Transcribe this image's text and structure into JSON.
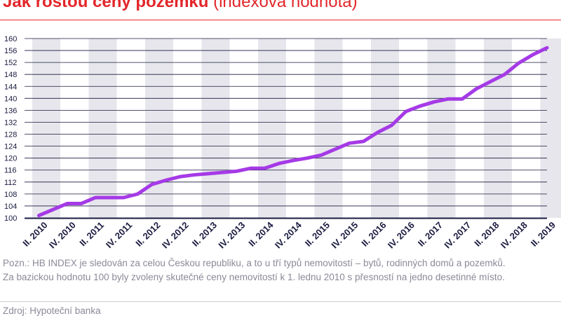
{
  "header": {
    "title": "Jak rostou ceny pozemků",
    "subtitle": "(indexová hodnota)"
  },
  "chart_data": {
    "type": "line",
    "title": "Jak rostou ceny pozemků (indexová hodnota)",
    "ylim": [
      100,
      160
    ],
    "yticks": [
      100,
      104,
      108,
      112,
      116,
      120,
      124,
      128,
      132,
      136,
      140,
      144,
      148,
      152,
      156,
      160
    ],
    "grid": true,
    "x": [
      "II. 2010",
      "III. 2010",
      "IV. 2010",
      "I. 2011",
      "II. 2011",
      "III. 2011",
      "IV. 2011",
      "I. 2012",
      "II. 2012",
      "III. 2012",
      "IV. 2012",
      "I. 2013",
      "II. 2013",
      "III. 2013",
      "IV. 2013",
      "I. 2014",
      "II. 2014",
      "III. 2014",
      "IV. 2014",
      "I. 2015",
      "II. 2015",
      "III. 2015",
      "IV. 2015",
      "I. 2016",
      "II. 2016",
      "III. 2016",
      "IV. 2016",
      "I. 2017",
      "II. 2017",
      "III. 2017",
      "IV. 2017",
      "I. 2018",
      "II. 2018",
      "III. 2018",
      "IV. 2018",
      "I. 2019",
      "II. 2019"
    ],
    "x_tick_labels": [
      "II. 2010",
      "IV. 2010",
      "II. 2011",
      "IV. 2011",
      "II. 2012",
      "IV. 2012",
      "II. 2013",
      "IV. 2013",
      "II. 2014",
      "IV. 2014",
      "II. 2015",
      "IV. 2015",
      "II. 2016",
      "IV. 2016",
      "II. 2017",
      "IV. 2017",
      "II. 2018",
      "IV. 2018",
      "II. 2019"
    ],
    "series": [
      {
        "values": [
          100.8,
          102.8,
          104.8,
          104.8,
          106.8,
          106.8,
          106.8,
          108,
          111.2,
          112.6,
          113.8,
          114.4,
          114.8,
          115.2,
          115.6,
          116.6,
          116.6,
          118.2,
          119.2,
          120,
          121,
          123,
          125,
          125.6,
          128.6,
          131,
          135.6,
          137.4,
          138.8,
          139.8,
          139.8,
          143.2,
          145.6,
          148,
          151.8,
          154.6,
          156.9
        ]
      }
    ],
    "colors": {
      "line": "#a53ae6",
      "title": "#e3262a",
      "axis": "#1a1a40",
      "band": "#e6e6ec",
      "grid": "#1a1a40",
      "text": "#1a1a40"
    }
  },
  "footer": {
    "notes": [
      "Pozn.: HB INDEX je sledován za celou Českou republiku, a to u tří typů nemovitostí – bytů, rodinných domů a pozemků.",
      "Za bazickou hodnotu 100 byly zvoleny skutečné ceny nemovitostí k 1. lednu 2010 s přesností na jedno desetinné místo."
    ],
    "source": "Zdroj: Hypoteční banka"
  }
}
